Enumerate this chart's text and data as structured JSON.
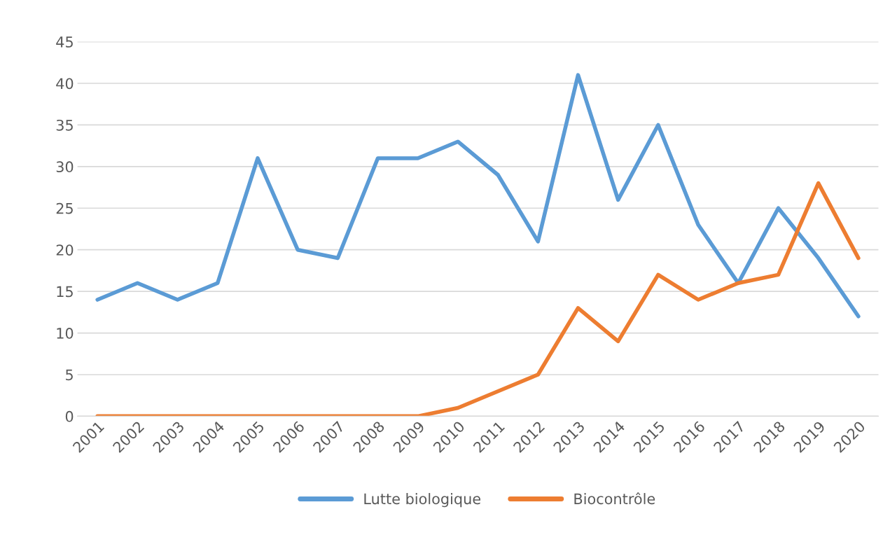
{
  "chart_data": {
    "type": "line",
    "categories": [
      "2001",
      "2002",
      "2003",
      "2004",
      "2005",
      "2006",
      "2007",
      "2008",
      "2009",
      "2010",
      "2011",
      "2012",
      "2013",
      "2014",
      "2015",
      "2016",
      "2017",
      "2018",
      "2019",
      "2020"
    ],
    "series": [
      {
        "name": "Lutte biologique",
        "color": "#5b9bd5",
        "values": [
          14,
          16,
          14,
          16,
          31,
          20,
          19,
          31,
          31,
          33,
          29,
          21,
          41,
          26,
          35,
          23,
          16,
          25,
          19,
          12
        ]
      },
      {
        "name": "Biocontrôle",
        "color": "#ed7d31",
        "values": [
          0,
          0,
          0,
          0,
          0,
          0,
          0,
          0,
          0,
          1,
          3,
          5,
          13,
          9,
          17,
          14,
          16,
          17,
          28,
          19
        ]
      }
    ],
    "ylim": [
      0,
      45
    ],
    "yticks": [
      0,
      5,
      10,
      15,
      20,
      25,
      30,
      35,
      40,
      45
    ],
    "grid": "y",
    "legend": "bottom",
    "marker": "none",
    "line_style": "solid"
  }
}
